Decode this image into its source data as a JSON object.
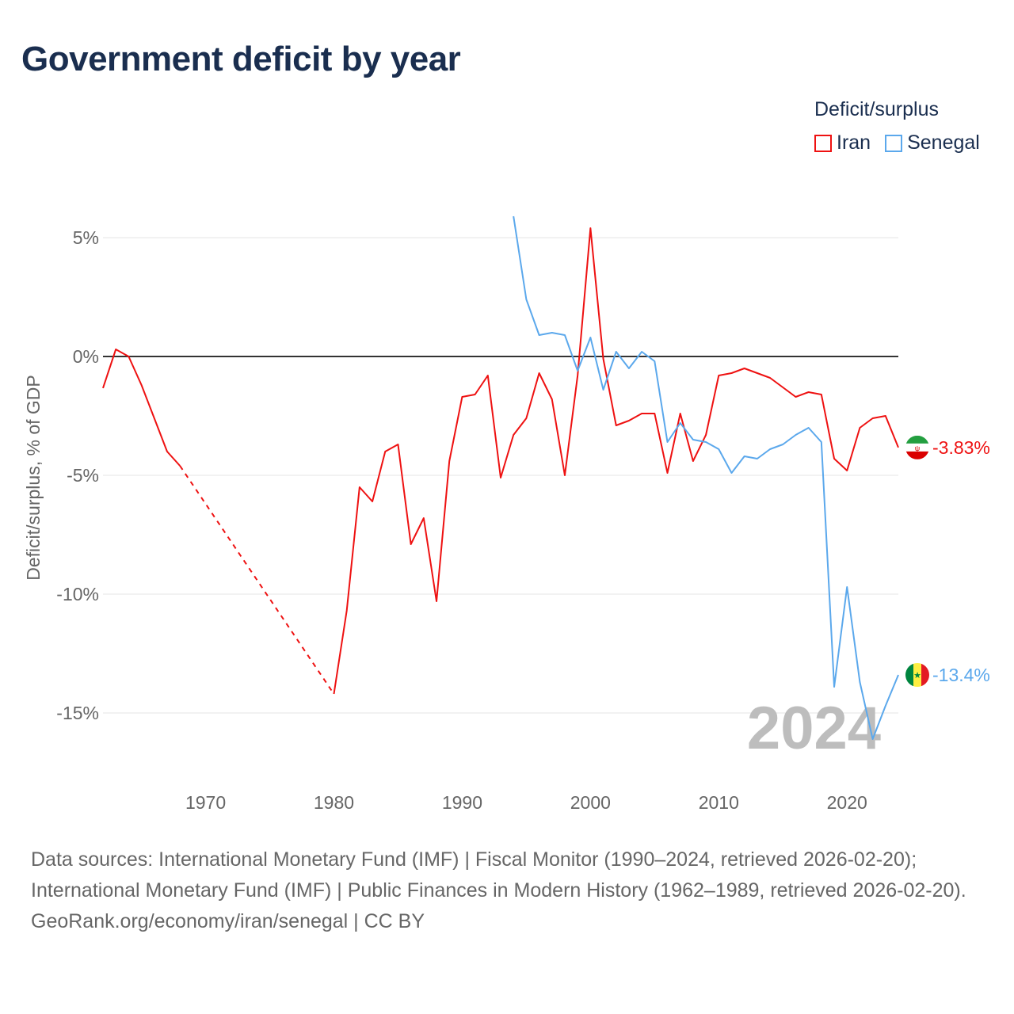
{
  "title": "Government deficit by year",
  "chart_data": {
    "type": "line",
    "title": "Government deficit by year",
    "xlabel": "",
    "ylabel": "Deficit/surplus, % of GDP",
    "xlim": [
      1962,
      2024
    ],
    "ylim": [
      -17,
      6.3
    ],
    "x_ticks": [
      1970,
      1980,
      1990,
      2000,
      2010,
      2020
    ],
    "x_tick_labels": [
      "1970",
      "1980",
      "1990",
      "2000",
      "2010",
      "2020"
    ],
    "y_ticks": [
      5,
      0,
      -5,
      -10,
      -15
    ],
    "y_tick_labels": [
      "5%",
      "0%",
      "-5%",
      "-10%",
      "-15%"
    ],
    "grid": true,
    "legend_title": "Deficit/surplus",
    "legend_position": "top-right",
    "year_watermark": "2024",
    "series": [
      {
        "name": "Iran",
        "color": "#ee1111",
        "end_label": "-3.83%",
        "gap_dashed": [
          1968,
          1980
        ],
        "points": [
          [
            1962,
            -1.33
          ],
          [
            1963,
            0.3
          ],
          [
            1964,
            0
          ],
          [
            1965,
            -1.2
          ],
          [
            1966,
            -2.6
          ],
          [
            1967,
            -4.0
          ],
          [
            1968,
            -4.6
          ],
          [
            1980,
            -14.2
          ],
          [
            1981,
            -10.7
          ],
          [
            1982,
            -5.5
          ],
          [
            1983,
            -6.1
          ],
          [
            1984,
            -4.0
          ],
          [
            1985,
            -3.7
          ],
          [
            1986,
            -7.9
          ],
          [
            1987,
            -6.8
          ],
          [
            1988,
            -10.3
          ],
          [
            1989,
            -4.4
          ],
          [
            1990,
            -1.7
          ],
          [
            1991,
            -1.6
          ],
          [
            1992,
            -0.8
          ],
          [
            1993,
            -5.1
          ],
          [
            1994,
            -3.3
          ],
          [
            1995,
            -2.6
          ],
          [
            1996,
            -0.7
          ],
          [
            1997,
            -1.8
          ],
          [
            1998,
            -5.0
          ],
          [
            1999,
            -0.8
          ],
          [
            2000,
            5.4
          ],
          [
            2001,
            -0.1
          ],
          [
            2002,
            -2.9
          ],
          [
            2003,
            -2.7
          ],
          [
            2004,
            -2.4
          ],
          [
            2005,
            -2.4
          ],
          [
            2006,
            -4.9
          ],
          [
            2007,
            -2.4
          ],
          [
            2008,
            -4.4
          ],
          [
            2009,
            -3.3
          ],
          [
            2010,
            -0.8
          ],
          [
            2011,
            -0.7
          ],
          [
            2012,
            -0.5
          ],
          [
            2013,
            -0.7
          ],
          [
            2014,
            -0.9
          ],
          [
            2015,
            -1.3
          ],
          [
            2016,
            -1.7
          ],
          [
            2017,
            -1.5
          ],
          [
            2018,
            -1.6
          ],
          [
            2019,
            -4.3
          ],
          [
            2020,
            -4.8
          ],
          [
            2021,
            -3.0
          ],
          [
            2022,
            -2.6
          ],
          [
            2023,
            -2.5
          ],
          [
            2024,
            -3.83
          ]
        ]
      },
      {
        "name": "Senegal",
        "color": "#5ba8ec",
        "end_label": "-13.4%",
        "points": [
          [
            1994,
            5.9
          ],
          [
            1995,
            2.4
          ],
          [
            1996,
            0.9
          ],
          [
            1997,
            1.0
          ],
          [
            1998,
            0.9
          ],
          [
            1999,
            -0.6
          ],
          [
            2000,
            0.8
          ],
          [
            2001,
            -1.4
          ],
          [
            2002,
            0.2
          ],
          [
            2003,
            -0.5
          ],
          [
            2004,
            0.2
          ],
          [
            2005,
            -0.2
          ],
          [
            2006,
            -3.6
          ],
          [
            2007,
            -2.8
          ],
          [
            2008,
            -3.5
          ],
          [
            2009,
            -3.6
          ],
          [
            2010,
            -3.9
          ],
          [
            2011,
            -4.9
          ],
          [
            2012,
            -4.2
          ],
          [
            2013,
            -4.3
          ],
          [
            2014,
            -3.9
          ],
          [
            2015,
            -3.7
          ],
          [
            2016,
            -3.3
          ],
          [
            2017,
            -3.0
          ],
          [
            2018,
            -3.6
          ],
          [
            2019,
            -13.9
          ],
          [
            2020,
            -9.7
          ],
          [
            2021,
            -13.7
          ],
          [
            2022,
            -16.1
          ],
          [
            2023,
            -14.7
          ],
          [
            2024,
            -13.4
          ]
        ]
      }
    ]
  },
  "footer": {
    "sources": "Data sources: International Monetary Fund (IMF) | Fiscal Monitor (1990–2024, retrieved 2026-02-20); International Monetary Fund (IMF) | Public Finances in Modern History (1962–1989, retrieved 2026-02-20).",
    "credit": "GeoRank.org/economy/iran/senegal | CC BY"
  }
}
